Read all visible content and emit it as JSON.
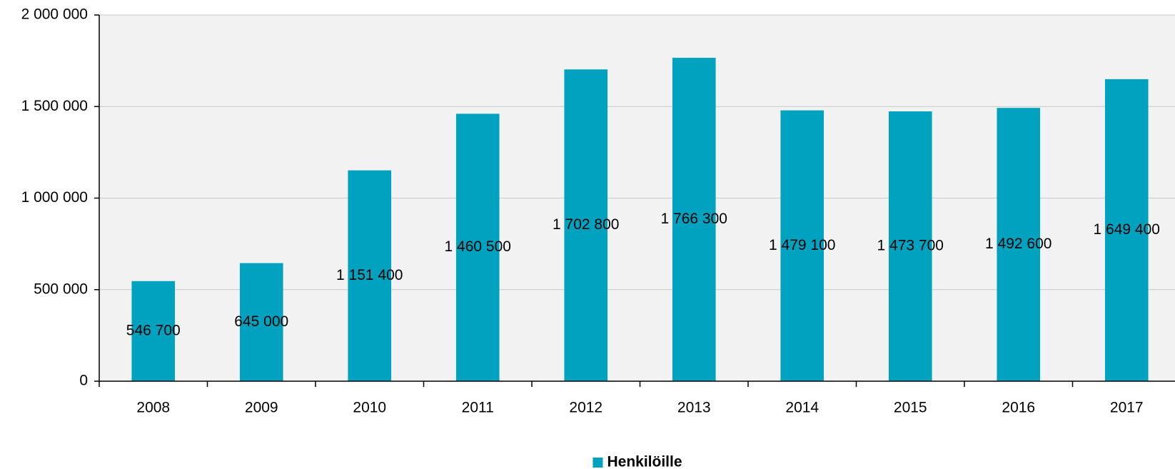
{
  "chart_data": {
    "type": "bar",
    "categories": [
      "2008",
      "2009",
      "2010",
      "2011",
      "2012",
      "2013",
      "2014",
      "2015",
      "2016",
      "2017"
    ],
    "series": [
      {
        "name": "Henkilöille",
        "color": "#00a2c0",
        "values": [
          546700,
          645000,
          1151400,
          1460500,
          1702800,
          1766300,
          1479100,
          1473700,
          1492600,
          1649400
        ],
        "value_labels": [
          "546 700",
          "645 000",
          "1 151 400",
          "1 460 500",
          "1 702 800",
          "1 766 300",
          "1 479 100",
          "1 473 700",
          "1 492 600",
          "1 649 400"
        ]
      }
    ],
    "ylim": [
      0,
      2000000
    ],
    "yticks": [
      0,
      {
        "value": 500000,
        "label": "500 000"
      },
      {
        "value": 1000000,
        "label": "1 000 000"
      },
      {
        "value": 1500000,
        "label": "1 500 000"
      },
      {
        "value": 2000000,
        "label": "2 000 000"
      }
    ],
    "grid": true,
    "legend": "bottom"
  }
}
